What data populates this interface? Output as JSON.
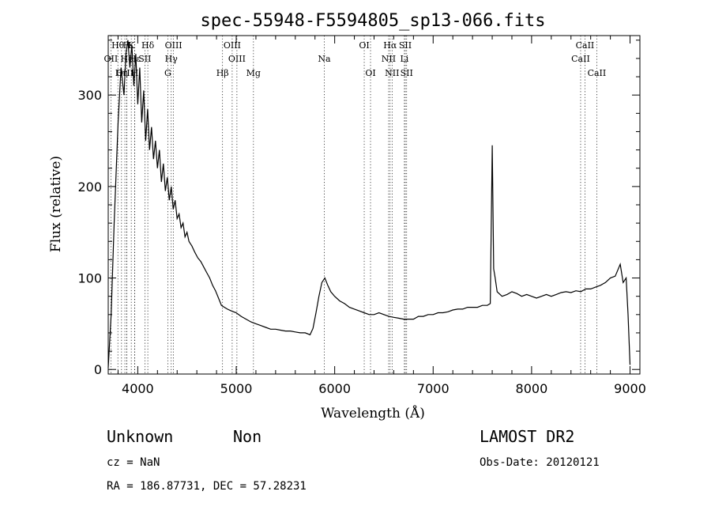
{
  "chart_data": {
    "type": "line",
    "title": "spec-55948-F5594805_sp13-066.fits",
    "xlabel": "Wavelength (Å)",
    "ylabel": "Flux (relative)",
    "xlim": [
      3700,
      9100
    ],
    "ylim": [
      -5,
      365
    ],
    "xticks": [
      4000,
      5000,
      6000,
      7000,
      8000,
      9000
    ],
    "yticks": [
      0,
      100,
      200,
      300
    ],
    "series": [
      {
        "points": [
          [
            3700,
            2
          ],
          [
            3730,
            60
          ],
          [
            3760,
            160
          ],
          [
            3800,
            270
          ],
          [
            3830,
            330
          ],
          [
            3860,
            300
          ],
          [
            3880,
            345
          ],
          [
            3900,
            360
          ],
          [
            3920,
            330
          ],
          [
            3940,
            355
          ],
          [
            3960,
            310
          ],
          [
            3980,
            345
          ],
          [
            4000,
            290
          ],
          [
            4020,
            330
          ],
          [
            4040,
            270
          ],
          [
            4060,
            305
          ],
          [
            4080,
            250
          ],
          [
            4100,
            285
          ],
          [
            4120,
            240
          ],
          [
            4140,
            265
          ],
          [
            4160,
            230
          ],
          [
            4180,
            250
          ],
          [
            4200,
            220
          ],
          [
            4220,
            240
          ],
          [
            4240,
            205
          ],
          [
            4260,
            225
          ],
          [
            4280,
            195
          ],
          [
            4300,
            210
          ],
          [
            4320,
            185
          ],
          [
            4340,
            200
          ],
          [
            4360,
            175
          ],
          [
            4380,
            185
          ],
          [
            4400,
            165
          ],
          [
            4420,
            170
          ],
          [
            4440,
            155
          ],
          [
            4460,
            160
          ],
          [
            4480,
            145
          ],
          [
            4500,
            150
          ],
          [
            4520,
            140
          ],
          [
            4550,
            135
          ],
          [
            4580,
            128
          ],
          [
            4610,
            122
          ],
          [
            4640,
            118
          ],
          [
            4670,
            112
          ],
          [
            4700,
            106
          ],
          [
            4730,
            100
          ],
          [
            4760,
            92
          ],
          [
            4790,
            86
          ],
          [
            4820,
            78
          ],
          [
            4850,
            70
          ],
          [
            4880,
            68
          ],
          [
            4910,
            66
          ],
          [
            4950,
            64
          ],
          [
            5000,
            62
          ],
          [
            5050,
            58
          ],
          [
            5100,
            55
          ],
          [
            5150,
            52
          ],
          [
            5200,
            50
          ],
          [
            5250,
            48
          ],
          [
            5300,
            46
          ],
          [
            5350,
            44
          ],
          [
            5400,
            44
          ],
          [
            5450,
            43
          ],
          [
            5500,
            42
          ],
          [
            5550,
            42
          ],
          [
            5600,
            41
          ],
          [
            5650,
            40
          ],
          [
            5700,
            40
          ],
          [
            5750,
            38
          ],
          [
            5780,
            45
          ],
          [
            5810,
            62
          ],
          [
            5840,
            80
          ],
          [
            5870,
            95
          ],
          [
            5900,
            100
          ],
          [
            5930,
            92
          ],
          [
            5960,
            85
          ],
          [
            6000,
            80
          ],
          [
            6050,
            75
          ],
          [
            6100,
            72
          ],
          [
            6150,
            68
          ],
          [
            6200,
            66
          ],
          [
            6250,
            64
          ],
          [
            6300,
            62
          ],
          [
            6350,
            60
          ],
          [
            6400,
            60
          ],
          [
            6450,
            62
          ],
          [
            6500,
            60
          ],
          [
            6550,
            58
          ],
          [
            6600,
            57
          ],
          [
            6650,
            56
          ],
          [
            6700,
            55
          ],
          [
            6750,
            55
          ],
          [
            6800,
            55
          ],
          [
            6850,
            58
          ],
          [
            6900,
            58
          ],
          [
            6950,
            60
          ],
          [
            7000,
            60
          ],
          [
            7050,
            62
          ],
          [
            7100,
            62
          ],
          [
            7150,
            63
          ],
          [
            7200,
            65
          ],
          [
            7250,
            66
          ],
          [
            7300,
            66
          ],
          [
            7350,
            68
          ],
          [
            7400,
            68
          ],
          [
            7450,
            68
          ],
          [
            7500,
            70
          ],
          [
            7550,
            70
          ],
          [
            7580,
            72
          ],
          [
            7600,
            245
          ],
          [
            7615,
            110
          ],
          [
            7630,
            100
          ],
          [
            7650,
            85
          ],
          [
            7700,
            80
          ],
          [
            7750,
            82
          ],
          [
            7800,
            85
          ],
          [
            7850,
            83
          ],
          [
            7900,
            80
          ],
          [
            7950,
            82
          ],
          [
            8000,
            80
          ],
          [
            8050,
            78
          ],
          [
            8100,
            80
          ],
          [
            8150,
            82
          ],
          [
            8200,
            80
          ],
          [
            8250,
            82
          ],
          [
            8300,
            84
          ],
          [
            8350,
            85
          ],
          [
            8400,
            84
          ],
          [
            8450,
            86
          ],
          [
            8500,
            85
          ],
          [
            8550,
            88
          ],
          [
            8600,
            88
          ],
          [
            8650,
            90
          ],
          [
            8700,
            92
          ],
          [
            8750,
            95
          ],
          [
            8800,
            100
          ],
          [
            8850,
            102
          ],
          [
            8900,
            115
          ],
          [
            8930,
            95
          ],
          [
            8960,
            100
          ],
          [
            8980,
            60
          ],
          [
            9000,
            5
          ]
        ]
      }
    ],
    "line_markers": [
      {
        "label": "Hθ",
        "wavelength": 3798,
        "row": 0
      },
      {
        "label": "OII",
        "wavelength": 3727,
        "row": 1
      },
      {
        "label": "OIII",
        "wavelength": 3869,
        "row": 2
      },
      {
        "label": "H",
        "wavelength": 3889,
        "row": 0
      },
      {
        "label": "He",
        "wavelength": 3889,
        "row": 1
      },
      {
        "label": "Hη",
        "wavelength": 3835,
        "row": 2
      },
      {
        "label": "K",
        "wavelength": 3934,
        "row": 0
      },
      {
        "label": "Hε",
        "wavelength": 3970,
        "row": 1
      },
      {
        "label": "H",
        "wavelength": 3969,
        "row": 2
      },
      {
        "label": "Hδ",
        "wavelength": 4102,
        "row": 0
      },
      {
        "label": "SII",
        "wavelength": 4072,
        "row": 1
      },
      {
        "label": "OIII",
        "wavelength": 4363,
        "row": 0
      },
      {
        "label": "Hγ",
        "wavelength": 4340,
        "row": 1
      },
      {
        "label": "G",
        "wavelength": 4305,
        "row": 2
      },
      {
        "label": "OIII",
        "wavelength": 4959,
        "row": 0
      },
      {
        "label": "OIII",
        "wavelength": 5007,
        "row": 1
      },
      {
        "label": "Hβ",
        "wavelength": 4861,
        "row": 2
      },
      {
        "label": "Mg",
        "wavelength": 5175,
        "row": 2
      },
      {
        "label": "Na",
        "wavelength": 5894,
        "row": 1
      },
      {
        "label": "OI",
        "wavelength": 6300,
        "row": 0
      },
      {
        "label": "OI",
        "wavelength": 6364,
        "row": 2
      },
      {
        "label": "Hα",
        "wavelength": 6563,
        "row": 0
      },
      {
        "label": "NII",
        "wavelength": 6548,
        "row": 1
      },
      {
        "label": "NII",
        "wavelength": 6583,
        "row": 2
      },
      {
        "label": "SII",
        "wavelength": 6717,
        "row": 0
      },
      {
        "label": "Li",
        "wavelength": 6708,
        "row": 1
      },
      {
        "label": "SII",
        "wavelength": 6731,
        "row": 2
      },
      {
        "label": "CaII",
        "wavelength": 8542,
        "row": 0
      },
      {
        "label": "CaII",
        "wavelength": 8498,
        "row": 1
      },
      {
        "label": "CaII",
        "wavelength": 8662,
        "row": 2
      }
    ]
  },
  "info": {
    "class": "Unknown",
    "subclass": "Non",
    "survey": "LAMOST DR2",
    "cz": "cz = NaN",
    "obs_date": "Obs-Date: 20120121",
    "coords": "RA = 186.87731, DEC =  57.28231"
  }
}
